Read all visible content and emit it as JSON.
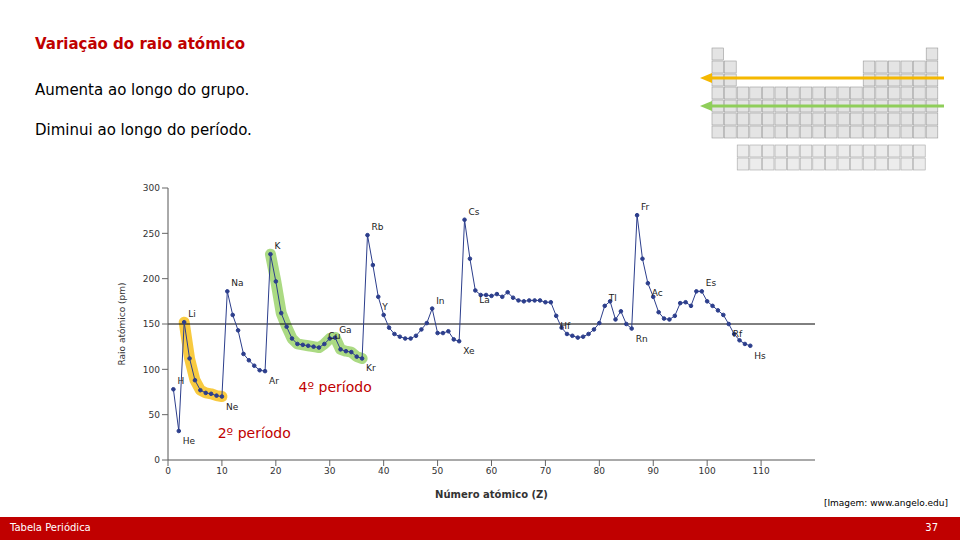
{
  "slide": {
    "title": "Variação do raio atómico",
    "bullets": [
      "Aumenta ao longo do grupo.",
      "Diminui ao longo do período."
    ],
    "source": "[Imagem: www.angelo.edu]",
    "footer": "Tabela Periódica",
    "page": 37
  },
  "chart_data": {
    "type": "line",
    "x_label": "Número atómico (Z)",
    "y_label": "Raio atómico (pm)",
    "x": [
      1,
      2,
      3,
      4,
      5,
      6,
      7,
      8,
      9,
      10,
      11,
      12,
      13,
      14,
      15,
      16,
      17,
      18,
      19,
      20,
      21,
      22,
      23,
      24,
      25,
      26,
      27,
      28,
      29,
      30,
      31,
      32,
      33,
      34,
      35,
      36,
      37,
      38,
      39,
      40,
      41,
      42,
      43,
      44,
      45,
      46,
      47,
      48,
      49,
      50,
      51,
      52,
      53,
      54,
      55,
      56,
      57,
      58,
      59,
      60,
      61,
      62,
      63,
      64,
      65,
      66,
      67,
      68,
      69,
      70,
      71,
      72,
      73,
      74,
      75,
      76,
      77,
      78,
      79,
      80,
      81,
      82,
      83,
      84,
      85,
      86,
      87,
      88,
      89,
      90,
      91,
      92,
      93,
      94,
      95,
      96,
      97,
      98,
      99,
      100,
      101,
      102,
      103,
      104,
      105,
      106,
      107,
      108
    ],
    "values": [
      78,
      32,
      152,
      112,
      88,
      77,
      74,
      73,
      71,
      70,
      186,
      160,
      143,
      117,
      110,
      104,
      99,
      98,
      227,
      197,
      162,
      147,
      134,
      128,
      127,
      126,
      125,
      124,
      128,
      134,
      135,
      122,
      120,
      119,
      114,
      112,
      248,
      215,
      180,
      160,
      146,
      139,
      136,
      134,
      134,
      137,
      144,
      151,
      167,
      140,
      140,
      142,
      133,
      131,
      265,
      222,
      187,
      182,
      182,
      181,
      183,
      180,
      185,
      179,
      176,
      175,
      176,
      176,
      176,
      174,
      174,
      159,
      146,
      139,
      137,
      135,
      136,
      139,
      144,
      151,
      170,
      175,
      155,
      164,
      150,
      145,
      270,
      222,
      195,
      180,
      163,
      156,
      155,
      159,
      173,
      174,
      170,
      186,
      186,
      175,
      170,
      165,
      160,
      150,
      139,
      132,
      128,
      126
    ],
    "color": "#2c3e8c",
    "marker": "circle",
    "point_labels": [
      {
        "x": 1,
        "label": "H"
      },
      {
        "x": 2,
        "label": "He"
      },
      {
        "x": 3,
        "label": "Li"
      },
      {
        "x": 10,
        "label": "Ne"
      },
      {
        "x": 11,
        "label": "Na"
      },
      {
        "x": 18,
        "label": "Ar"
      },
      {
        "x": 19,
        "label": "K"
      },
      {
        "x": 29,
        "label": "Cu"
      },
      {
        "x": 31,
        "label": "Ga"
      },
      {
        "x": 36,
        "label": "Kr"
      },
      {
        "x": 37,
        "label": "Rb"
      },
      {
        "x": 39,
        "label": "Y"
      },
      {
        "x": 49,
        "label": "In"
      },
      {
        "x": 54,
        "label": "Xe"
      },
      {
        "x": 55,
        "label": "Cs"
      },
      {
        "x": 57,
        "label": "La"
      },
      {
        "x": 72,
        "label": "Hf"
      },
      {
        "x": 81,
        "label": "Tl"
      },
      {
        "x": 86,
        "label": "Rn"
      },
      {
        "x": 87,
        "label": "Fr"
      },
      {
        "x": 89,
        "label": "Ac"
      },
      {
        "x": 99,
        "label": "Es"
      },
      {
        "x": 104,
        "label": "Rf"
      },
      {
        "x": 108,
        "label": "Hs"
      }
    ],
    "highlights": [
      {
        "label": "2º período",
        "color": "#f5b800",
        "from": 3,
        "to": 10
      },
      {
        "label": "4º período",
        "color": "#8fce5a",
        "from": 19,
        "to": 36
      }
    ],
    "hlines": [
      150
    ],
    "xlim": [
      0,
      120
    ],
    "xticks": [
      0,
      10,
      20,
      30,
      40,
      50,
      60,
      70,
      80,
      90,
      100,
      110
    ],
    "ylim": [
      0,
      300
    ],
    "yticks": [
      0,
      50,
      100,
      150,
      200,
      250,
      300
    ],
    "grid": false
  }
}
